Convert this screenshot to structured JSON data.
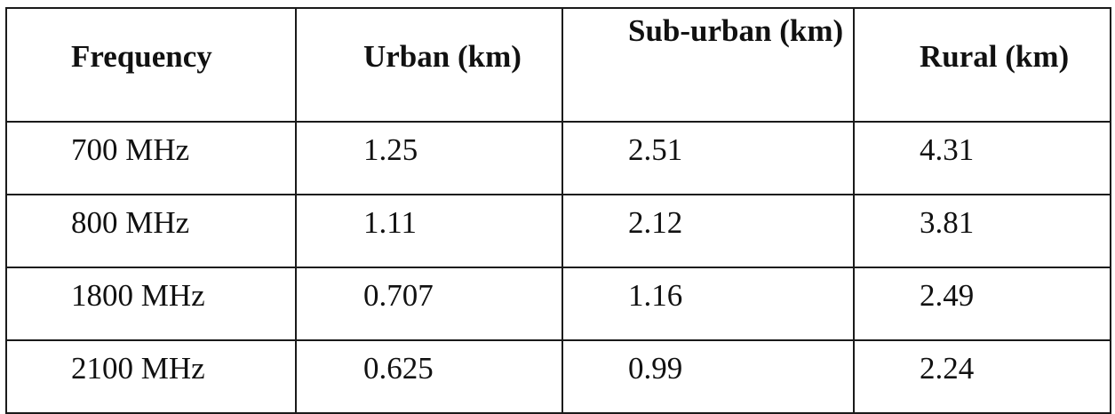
{
  "table": {
    "headers": [
      "Frequency",
      "Urban (km)",
      "Sub-urban (km)",
      "Rural (km)"
    ],
    "rows": [
      [
        "700 MHz",
        "1.25",
        "2.51",
        "4.31"
      ],
      [
        "800 MHz",
        "1.11",
        "2.12",
        "3.81"
      ],
      [
        "1800 MHz",
        "0.707",
        "1.16",
        "2.49"
      ],
      [
        "2100 MHz",
        "0.625",
        "0.99",
        "2.24"
      ]
    ]
  }
}
